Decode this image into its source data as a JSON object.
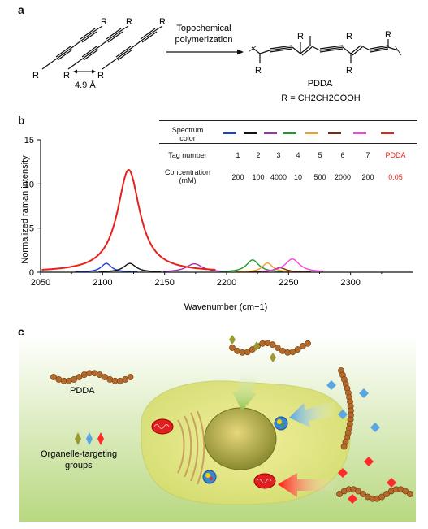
{
  "panels": {
    "a": "a",
    "b": "b",
    "c": "c"
  },
  "panel_a": {
    "r": "R",
    "spacing": "4.9 Å",
    "arrow_label_line1": "Topochemical",
    "arrow_label_line2": "polymerization",
    "product": "PDDA",
    "r_definition": "R = CH2CH2COOH"
  },
  "panel_b": {
    "table": {
      "header": "Spectrum color",
      "header_line1": "Spectrum",
      "header_line2": "color",
      "tag_label": "Tag number",
      "conc_label_line1": "Concentration",
      "conc_label_line2": "(mM)",
      "tags": [
        "1",
        "2",
        "3",
        "4",
        "5",
        "6",
        "7",
        "PDDA"
      ],
      "concentrations": [
        "200",
        "100",
        "4000",
        "10",
        "500",
        "2000",
        "200",
        "0.05"
      ],
      "colors": [
        "#1c3fe0",
        "#111111",
        "#9b2fb0",
        "#1f9a2a",
        "#f0a020",
        "#7a2a10",
        "#ff3de6",
        "#e8201a"
      ]
    }
  },
  "chart_data": {
    "type": "line",
    "xlabel": "Wavenumber (cm−1)",
    "ylabel": "Normalized raman intensity",
    "xlim": [
      2050,
      2350
    ],
    "ylim": [
      0,
      15
    ],
    "x_ticks": [
      "2050",
      "2100",
      "2150",
      "2200",
      "2250",
      "2300"
    ],
    "y_ticks": [
      "0",
      "5",
      "10",
      "15"
    ],
    "series": [
      {
        "name": "1",
        "color": "#1c3fe0",
        "center": 2103,
        "height": 1.0,
        "width": 5
      },
      {
        "name": "2",
        "color": "#111111",
        "center": 2122,
        "height": 1.0,
        "width": 6
      },
      {
        "name": "3",
        "color": "#9b2fb0",
        "center": 2174,
        "height": 0.95,
        "width": 8
      },
      {
        "name": "4",
        "color": "#1f9a2a",
        "center": 2221,
        "height": 1.4,
        "width": 6
      },
      {
        "name": "5",
        "color": "#f0a020",
        "center": 2233,
        "height": 1.05,
        "width": 5
      },
      {
        "name": "6",
        "color": "#7a2a10",
        "center": 2243,
        "height": 0.5,
        "width": 6
      },
      {
        "name": "7",
        "color": "#ff3de6",
        "center": 2253,
        "height": 1.5,
        "width": 7
      },
      {
        "name": "PDDA",
        "color": "#e8201a",
        "center": 2121,
        "height": 11.6,
        "width": 11
      }
    ]
  },
  "panel_c": {
    "pdda_label": "PDDA",
    "groups_line1": "Organelle-targeting",
    "groups_line2": "groups"
  }
}
